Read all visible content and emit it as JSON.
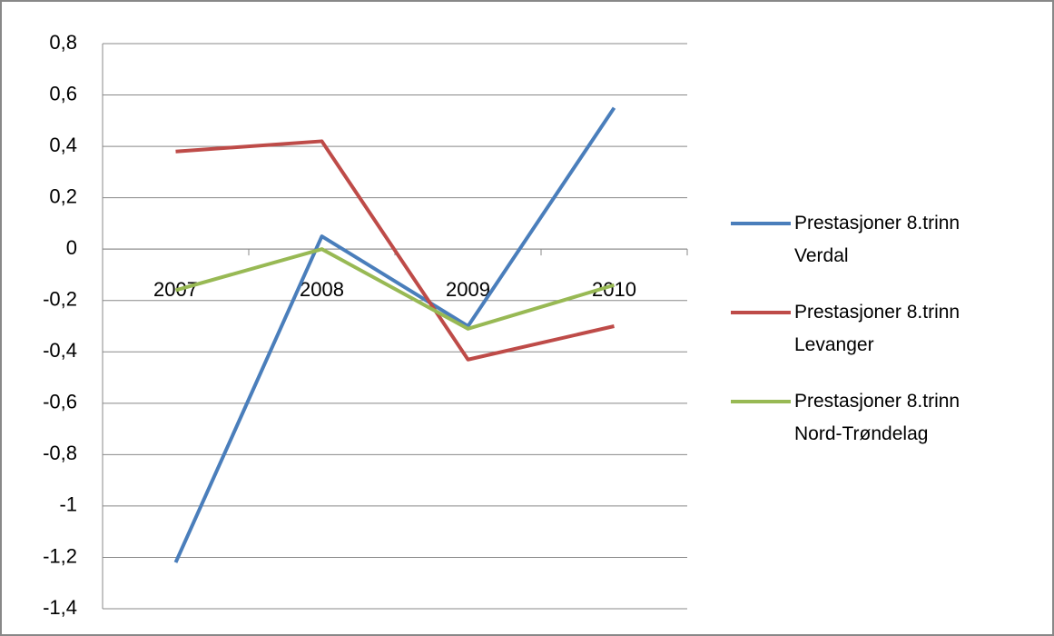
{
  "chart_data": {
    "type": "line",
    "categories": [
      "2007",
      "2008",
      "2009",
      "2010"
    ],
    "series": [
      {
        "name": "Prestasjoner 8.trinn Verdal",
        "color": "#4a7ebb",
        "values": [
          -1.22,
          0.05,
          -0.3,
          0.55
        ]
      },
      {
        "name": "Prestasjoner 8.trinn Levanger",
        "color": "#be4b48",
        "values": [
          0.38,
          0.42,
          -0.43,
          -0.3
        ]
      },
      {
        "name": "Prestasjoner 8.trinn Nord-Trøndelag",
        "color": "#98b954",
        "values": [
          -0.16,
          0.0,
          -0.31,
          -0.14
        ]
      }
    ],
    "ylim": [
      -1.4,
      0.8
    ],
    "yticks": [
      {
        "value": -1.4,
        "label": "-1,4"
      },
      {
        "value": -1.2,
        "label": "-1,2"
      },
      -1,
      {
        "value": -0.8,
        "label": "-0,8"
      },
      {
        "value": -0.6,
        "label": "-0,6"
      },
      {
        "value": -0.4,
        "label": "-0,4"
      },
      {
        "value": -0.2,
        "label": "-0,2"
      },
      0,
      {
        "value": 0.2,
        "label": "0,2"
      },
      {
        "value": 0.4,
        "label": "0,4"
      },
      {
        "value": 0.6,
        "label": "0,6"
      },
      {
        "value": 0.8,
        "label": "0,8"
      }
    ],
    "grid": true,
    "legend": "right"
  }
}
